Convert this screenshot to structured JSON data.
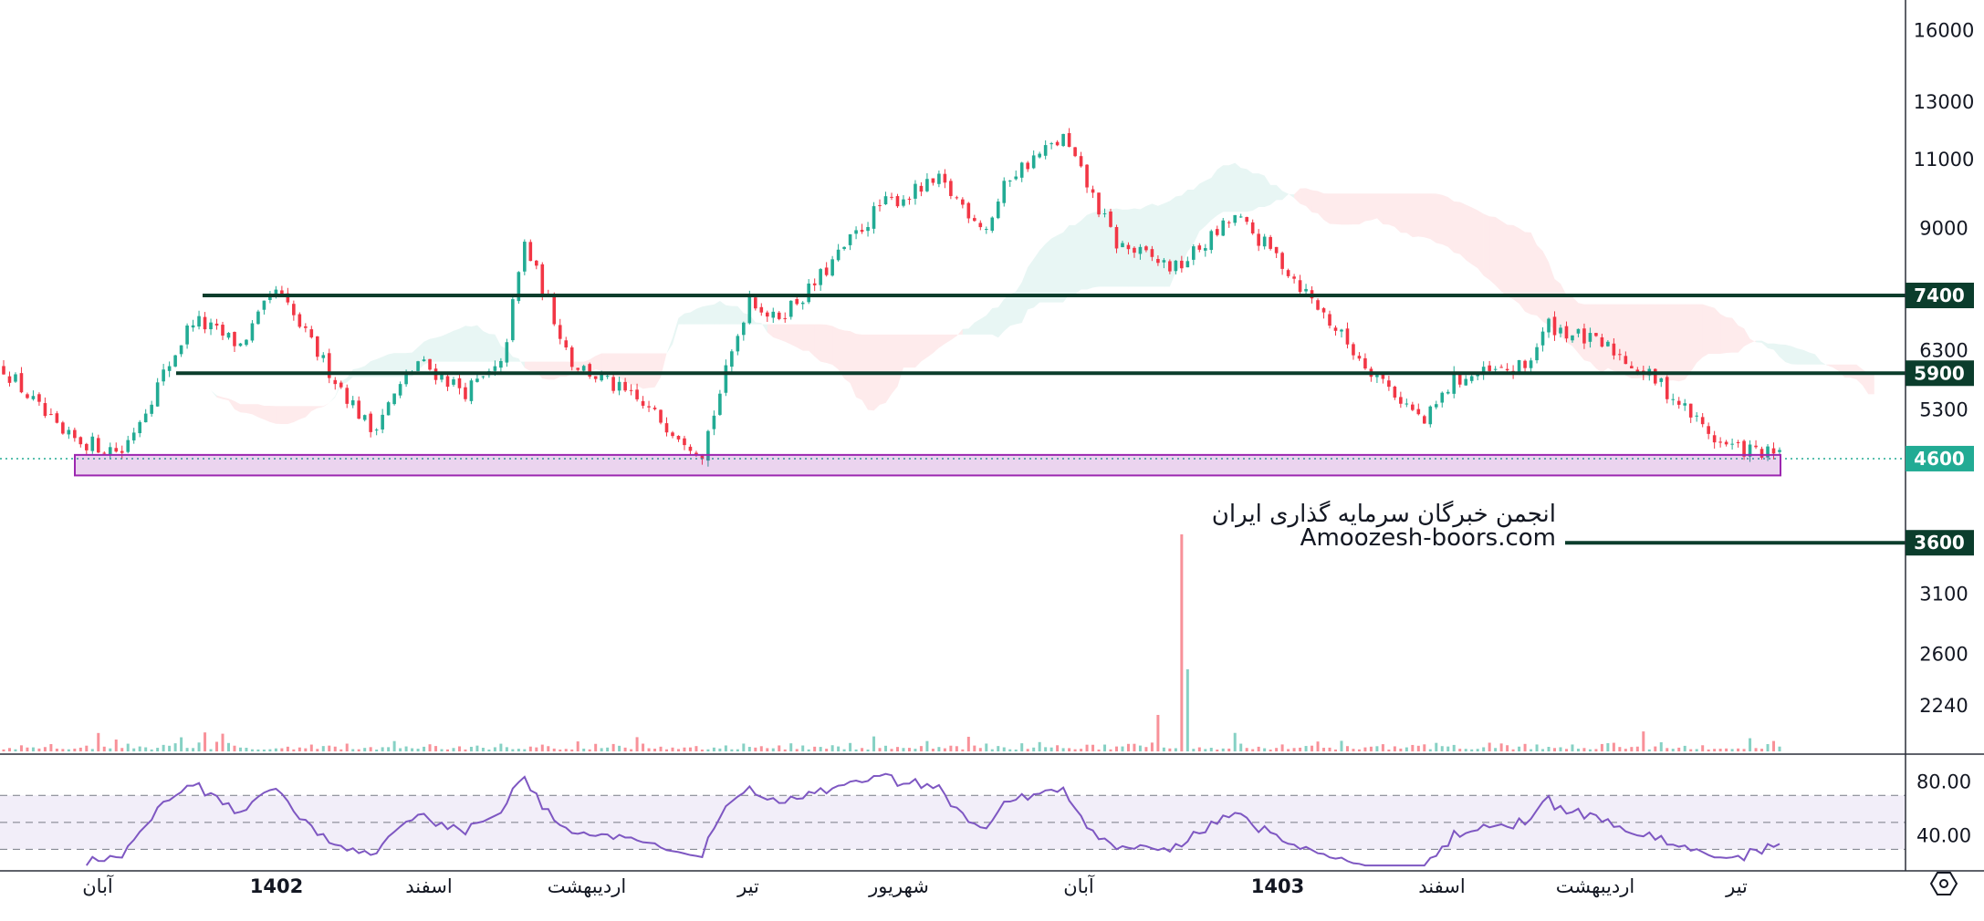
{
  "chart_data": {
    "type": "candlestick",
    "price_axis": {
      "scale": "log",
      "range": [
        1950,
        17500
      ],
      "ticks": [
        16000,
        13000,
        11000,
        9000,
        6300,
        5300,
        3100,
        2600,
        2240
      ]
    },
    "time_axis_labels": [
      {
        "text": "آبان",
        "year": false
      },
      {
        "text": "1402",
        "year": true
      },
      {
        "text": "اسفند",
        "year": false
      },
      {
        "text": "اردیبهشت",
        "year": false
      },
      {
        "text": "تیر",
        "year": false
      },
      {
        "text": "شهریور",
        "year": false
      },
      {
        "text": "آبان",
        "year": false
      },
      {
        "text": "1403",
        "year": true
      },
      {
        "text": "اسفند",
        "year": false
      },
      {
        "text": "اردیبهشت",
        "year": false
      },
      {
        "text": "تیر",
        "year": false
      }
    ],
    "horizontal_levels": [
      {
        "price": 7400,
        "label": "7400",
        "color": "#0b3d2c"
      },
      {
        "price": 5900,
        "label": "5900",
        "color": "#0b3d2c"
      },
      {
        "price": 3600,
        "label": "3600",
        "color": "#0b3d2c"
      }
    ],
    "current_price": {
      "value": 4600,
      "label": "4600",
      "color": "#22ab94"
    },
    "support_zone": {
      "low": 4380,
      "high": 4650,
      "color": "#9c27b0"
    },
    "price_path": [
      [
        0,
        6000
      ],
      [
        10,
        4900
      ],
      [
        20,
        4700
      ],
      [
        32,
        6900
      ],
      [
        40,
        6400
      ],
      [
        46,
        7500
      ],
      [
        54,
        6100
      ],
      [
        62,
        5000
      ],
      [
        70,
        6100
      ],
      [
        78,
        5600
      ],
      [
        84,
        6000
      ],
      [
        88,
        8600
      ],
      [
        96,
        6100
      ],
      [
        106,
        5500
      ],
      [
        118,
        4700
      ],
      [
        126,
        7400
      ],
      [
        130,
        6900
      ],
      [
        136,
        7500
      ],
      [
        148,
        9600
      ],
      [
        158,
        10300
      ],
      [
        166,
        9000
      ],
      [
        170,
        10500
      ],
      [
        179,
        11700
      ],
      [
        188,
        8600
      ],
      [
        198,
        8000
      ],
      [
        208,
        9300
      ],
      [
        215,
        8300
      ],
      [
        228,
        6300
      ],
      [
        240,
        5100
      ],
      [
        245,
        5800
      ],
      [
        257,
        6000
      ],
      [
        261,
        6800
      ],
      [
        272,
        6300
      ],
      [
        280,
        5700
      ],
      [
        290,
        4800
      ],
      [
        300,
        4620
      ]
    ],
    "candle_range": [
      0,
      300
    ],
    "colors": {
      "up": "#22ab94",
      "down": "#f23645",
      "cloud_up": "#22ab94",
      "cloud_down": "#f23645"
    },
    "rsi": {
      "ticks": [
        80,
        40
      ],
      "range": [
        14,
        100
      ],
      "band": [
        30,
        70
      ],
      "mid": 50,
      "line_color": "#7e57c2"
    },
    "volume": {
      "spike_index": 199,
      "color_up": "#22ab94",
      "color_down": "#f23645"
    }
  },
  "watermark": {
    "line1": "انجمن خبرگان سرمایه گذاری ایران",
    "line2": "Amoozesh-boors.com"
  },
  "settings_icon": "settings-hexagon-icon"
}
